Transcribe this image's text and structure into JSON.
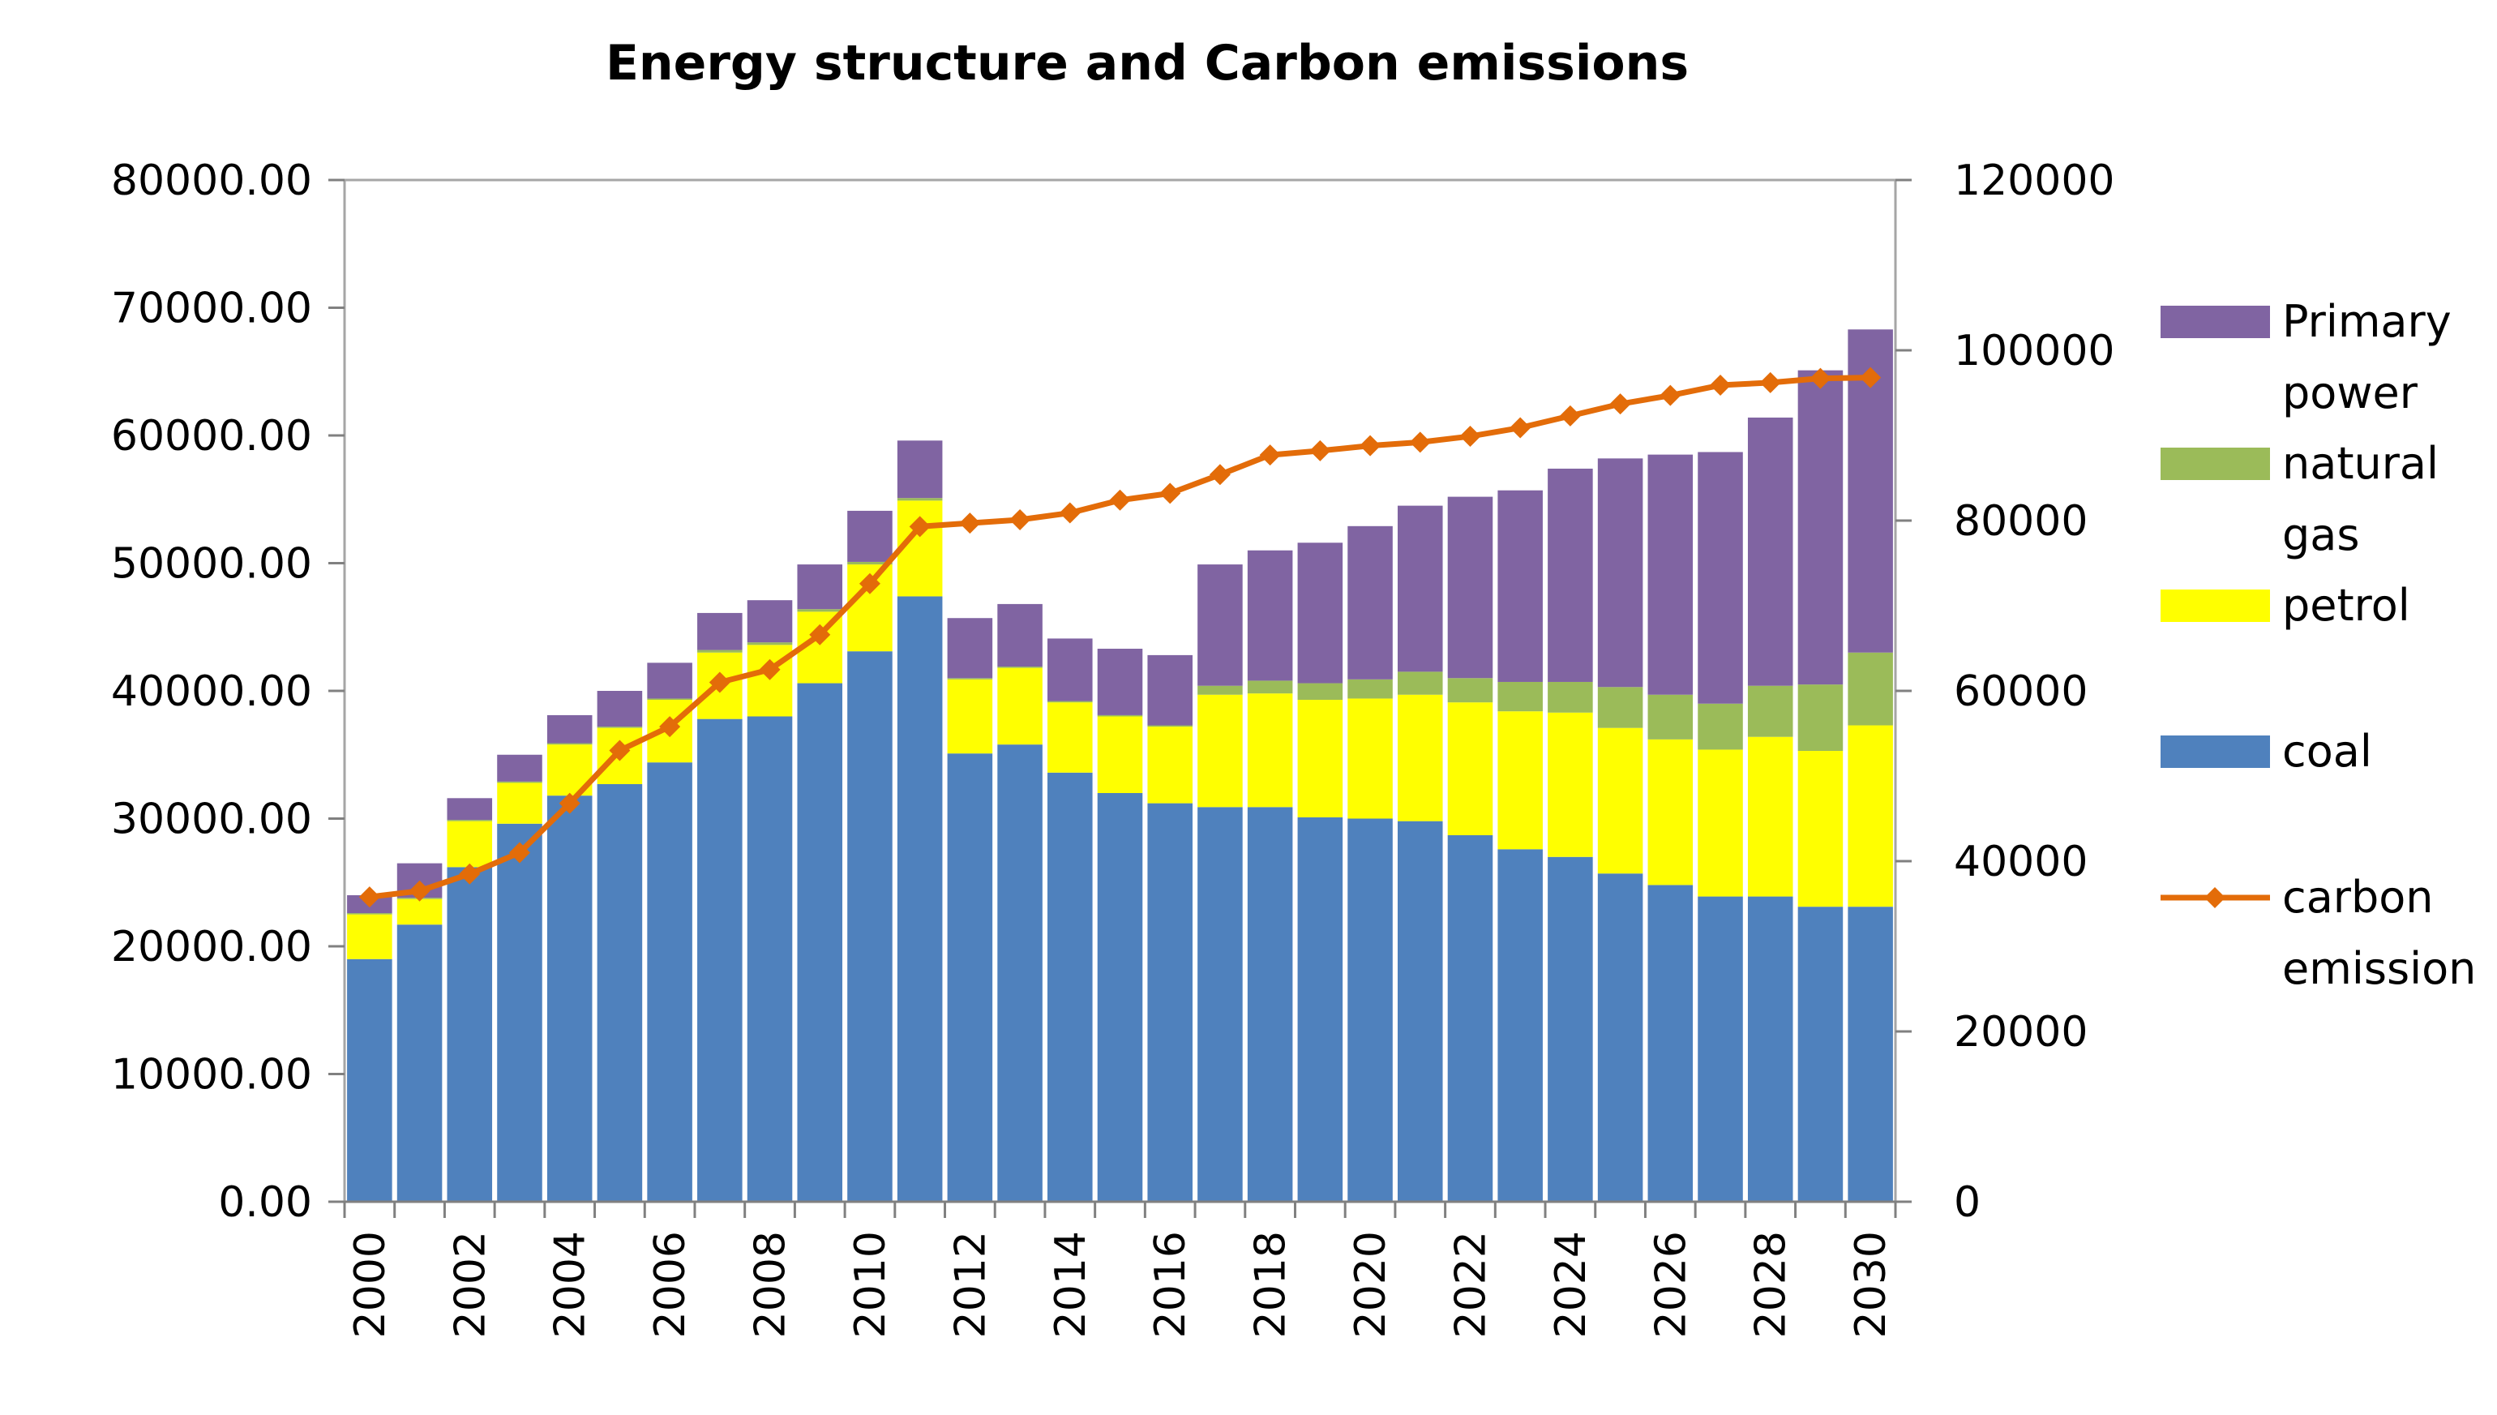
{
  "chart_data": {
    "type": "bar",
    "stacked": true,
    "title": "Energy structure and Carbon emissions",
    "xlabel": "",
    "ylabel": "",
    "ylim": [
      0,
      80000
    ],
    "y2lim": [
      0,
      120000
    ],
    "y_ticks": [
      "0.00",
      "10000.00",
      "20000.00",
      "30000.00",
      "40000.00",
      "50000.00",
      "60000.00",
      "70000.00",
      "80000.00"
    ],
    "y2_ticks": [
      "0",
      "20000",
      "40000",
      "60000",
      "80000",
      "100000",
      "120000"
    ],
    "categories": [
      "2000",
      "2001",
      "2002",
      "2003",
      "2004",
      "2005",
      "2006",
      "2007",
      "2008",
      "2009",
      "2010",
      "2011",
      "2012",
      "2013",
      "2014",
      "2015",
      "2016",
      "2017",
      "2018",
      "2019",
      "2020",
      "2021",
      "2022",
      "2023",
      "2024",
      "2025",
      "2026",
      "2027",
      "2028",
      "2029",
      "2030"
    ],
    "x_tick_labels": [
      "2000",
      "2002",
      "2004",
      "2006",
      "2008",
      "2010",
      "2012",
      "2014",
      "2016",
      "2018",
      "2020",
      "2022",
      "2024",
      "2026",
      "2028",
      "2030"
    ],
    "series": [
      {
        "name": "coal",
        "axis": "left",
        "kind": "bar",
        "color": "#4f81bd",
        "values": [
          19000,
          21700,
          26200,
          29600,
          31800,
          32700,
          34400,
          37800,
          38000,
          40600,
          43100,
          47400,
          35100,
          35800,
          33600,
          32000,
          31200,
          30900,
          30900,
          30100,
          30000,
          29800,
          28700,
          27600,
          27000,
          25700,
          24800,
          23900,
          23900,
          23100,
          23100
        ]
      },
      {
        "name": "petrol",
        "axis": "left",
        "kind": "bar",
        "color": "#ffff00",
        "values": [
          3500,
          2000,
          3600,
          3200,
          4000,
          4400,
          4900,
          5200,
          5600,
          5600,
          6800,
          7500,
          5800,
          6000,
          5500,
          6000,
          6000,
          8800,
          8900,
          9200,
          9400,
          9900,
          10400,
          10800,
          11300,
          11400,
          11400,
          11500,
          12500,
          12200,
          14200
        ]
      },
      {
        "name": "natural gas",
        "axis": "left",
        "kind": "bar",
        "color": "#9bbb59",
        "values": [
          100,
          100,
          100,
          100,
          100,
          100,
          100,
          200,
          200,
          200,
          200,
          200,
          100,
          100,
          100,
          100,
          100,
          700,
          1000,
          1300,
          1500,
          1800,
          1900,
          2300,
          2400,
          3200,
          3500,
          3600,
          4000,
          5200,
          5700
        ]
      },
      {
        "name": "Primary power",
        "axis": "left",
        "kind": "bar",
        "color": "#8064a2",
        "values": [
          1400,
          2700,
          1700,
          2100,
          2200,
          2800,
          2800,
          2900,
          3300,
          3500,
          4000,
          4500,
          4700,
          4900,
          4900,
          5200,
          5500,
          9500,
          10200,
          11000,
          12000,
          13000,
          14200,
          15000,
          16700,
          17900,
          18800,
          19700,
          21000,
          24600,
          25300
        ]
      },
      {
        "name": "carbon emission",
        "axis": "right",
        "kind": "line",
        "color": "#e36c09",
        "values": [
          35800,
          36500,
          38500,
          41000,
          46800,
          53000,
          55800,
          61000,
          62500,
          66600,
          72600,
          79300,
          79700,
          80100,
          80900,
          82400,
          83200,
          85400,
          87700,
          88200,
          88800,
          89200,
          89900,
          90900,
          92300,
          93700,
          94700,
          95900,
          96200,
          96700,
          96800
        ]
      }
    ],
    "legend": {
      "position": "right",
      "entries": [
        {
          "lines": [
            "Primary",
            "power"
          ],
          "series": "Primary power"
        },
        {
          "lines": [
            "natural",
            "gas"
          ],
          "series": "natural gas"
        },
        {
          "lines": [
            "petrol"
          ],
          "series": "petrol"
        },
        {
          "lines": [
            "coal"
          ],
          "series": "coal"
        },
        {
          "lines": [
            "carbon",
            "emission"
          ],
          "series": "carbon emission"
        }
      ]
    }
  }
}
